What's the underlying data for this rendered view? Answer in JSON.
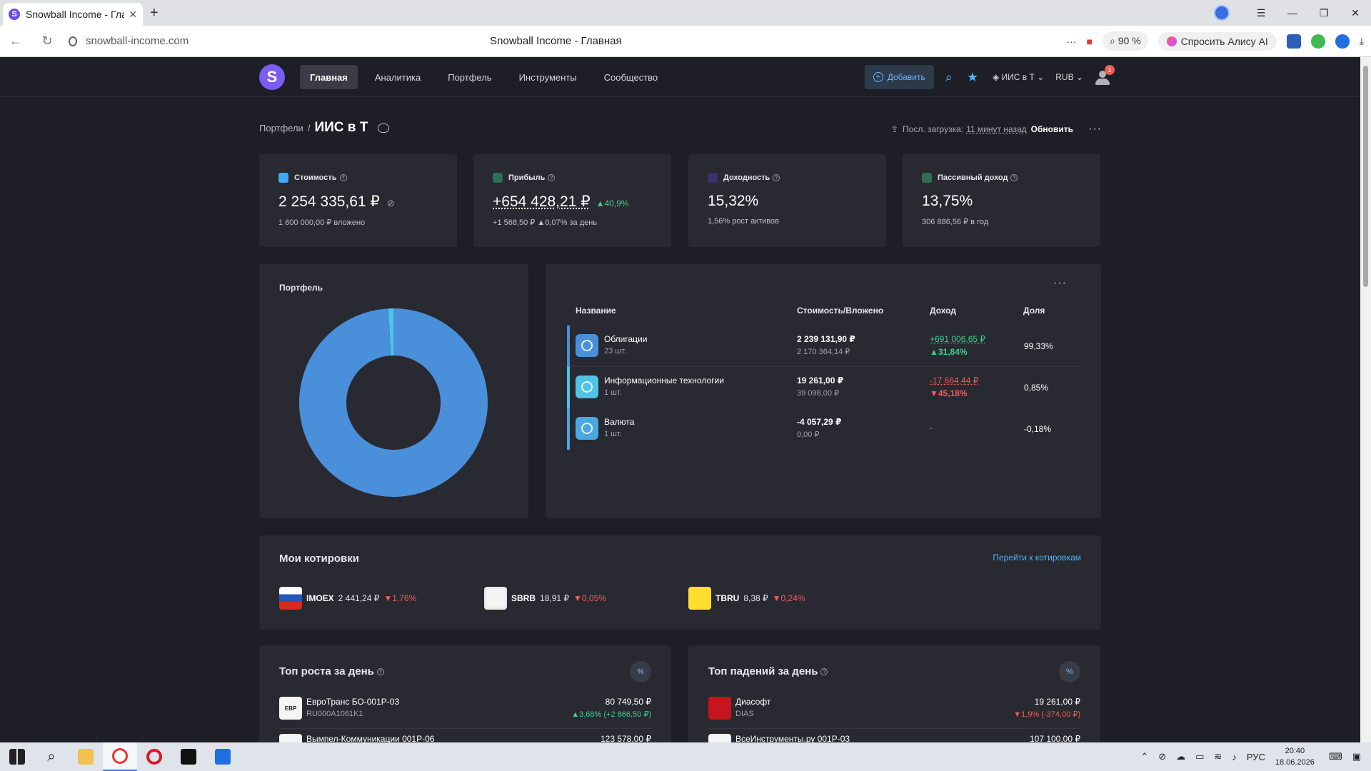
{
  "browser": {
    "tab_title": "Snowball Income - Глав",
    "tab_favicon_letter": "S",
    "url": "snowball-income.com",
    "page_title": "Snowball Income - Главная",
    "zoom": "90 %",
    "alice_label": "Спросить Алису AI"
  },
  "nav": {
    "logo": "S",
    "items": [
      "Главная",
      "Аналитика",
      "Портфель",
      "Инструменты",
      "Сообщество"
    ],
    "add_label": "Добавить",
    "portfolio_select": "ИИС в Т",
    "currency_select": "RUB",
    "notif_count": "1"
  },
  "header": {
    "breadcrumb_root": "Портфели",
    "breadcrumb_sep": "/",
    "title": "ИИС в Т",
    "last_load_label": "Посл. загрузка:",
    "last_load_value": "11 минут назад",
    "refresh": "Обновить"
  },
  "stats": [
    {
      "label": "Стоимость",
      "value": "2 254 335,61 ₽",
      "extra": "",
      "sub": "1 600 000,00 ₽ вложено",
      "color": "#3fa9f5"
    },
    {
      "label": "Прибыль",
      "value": "+654 428,21 ₽",
      "extra": "▲40,9%",
      "sub": "+1 568,50 ₽ ▲0,07% за день",
      "color": "#3fcf8e"
    },
    {
      "label": "Доходность",
      "value": "15,32%",
      "extra": "",
      "sub": "1,56%  рост активов",
      "color": "#8a6cf5"
    },
    {
      "label": "Пассивный доход",
      "value": "13,75%",
      "extra": "",
      "sub": "306 886,56 ₽ в год",
      "color": "#3fcf8e"
    }
  ],
  "portfolio": {
    "title": "Портфель",
    "table": {
      "headers": [
        "Название",
        "Стоимость/Вложено",
        "Доход",
        "Доля"
      ],
      "rows": [
        {
          "name": "Облигации",
          "count": "23 шт.",
          "value": "2 239 131,90 ₽",
          "invested": "2 170 364,14 ₽",
          "income": "+691 006,65 ₽",
          "income_pct": "▲31,84%",
          "share": "99,33%",
          "positive": true
        },
        {
          "name": "Информационные технологии",
          "count": "1 шт.",
          "value": "19 261,00 ₽",
          "invested": "39 098,00 ₽",
          "income": "-17 664,44 ₽",
          "income_pct": "▼45,18%",
          "share": "0,85%",
          "positive": false
        },
        {
          "name": "Валюта",
          "count": "1 шт.",
          "value": "-4 057,29 ₽",
          "invested": "0,00 ₽",
          "income": "-",
          "income_pct": "",
          "share": "-0,18%",
          "positive": null
        }
      ]
    }
  },
  "chart_data": {
    "type": "pie",
    "categories": [
      "Облигации",
      "Информационные технологии",
      "Валюта"
    ],
    "values": [
      99.33,
      0.85,
      -0.18
    ],
    "colors": [
      "#4a8fd9",
      "#4fc3e8",
      "#4aa7e0"
    ]
  },
  "quotes": {
    "title": "Мои котировки",
    "link": "Перейти к котировкам",
    "items": [
      {
        "ticker": "IMOEX",
        "price": "2 441,24 ₽",
        "change": "▼1,76%"
      },
      {
        "ticker": "SBRB",
        "price": "18,91 ₽",
        "change": "▼0,05%"
      },
      {
        "ticker": "TBRU",
        "price": "8,38 ₽",
        "change": "▼0,24%"
      }
    ]
  },
  "top_gainers": {
    "title": "Топ роста за день",
    "btn": "%",
    "rows": [
      {
        "logo": "ЕВР",
        "name": "ЕвроТранс БО-001Р-03",
        "isin": "RU000A1061K1",
        "price": "80 749,50 ₽",
        "change": "▲3,68% (+2 866,50 ₽)"
      },
      {
        "logo": "",
        "name": "Вымпел-Коммуникации 001Р-06",
        "isin": "",
        "price": "123 578,00 ₽",
        "change": ""
      }
    ]
  },
  "top_losers": {
    "title": "Топ падений за день",
    "btn": "%",
    "rows": [
      {
        "logo": "",
        "name": "Диасофт",
        "isin": "DIAS",
        "price": "19 261,00 ₽",
        "change": "▼1,9% (-374,00 ₽)"
      },
      {
        "logo": "",
        "name": "ВсеИнструменты.ру 001Р-03",
        "isin": "",
        "price": "107 100,00 ₽",
        "change": ""
      }
    ]
  },
  "help": "?",
  "taskbar": {
    "lang": "РУС",
    "time": "20:40",
    "date": "18.06.2026"
  }
}
